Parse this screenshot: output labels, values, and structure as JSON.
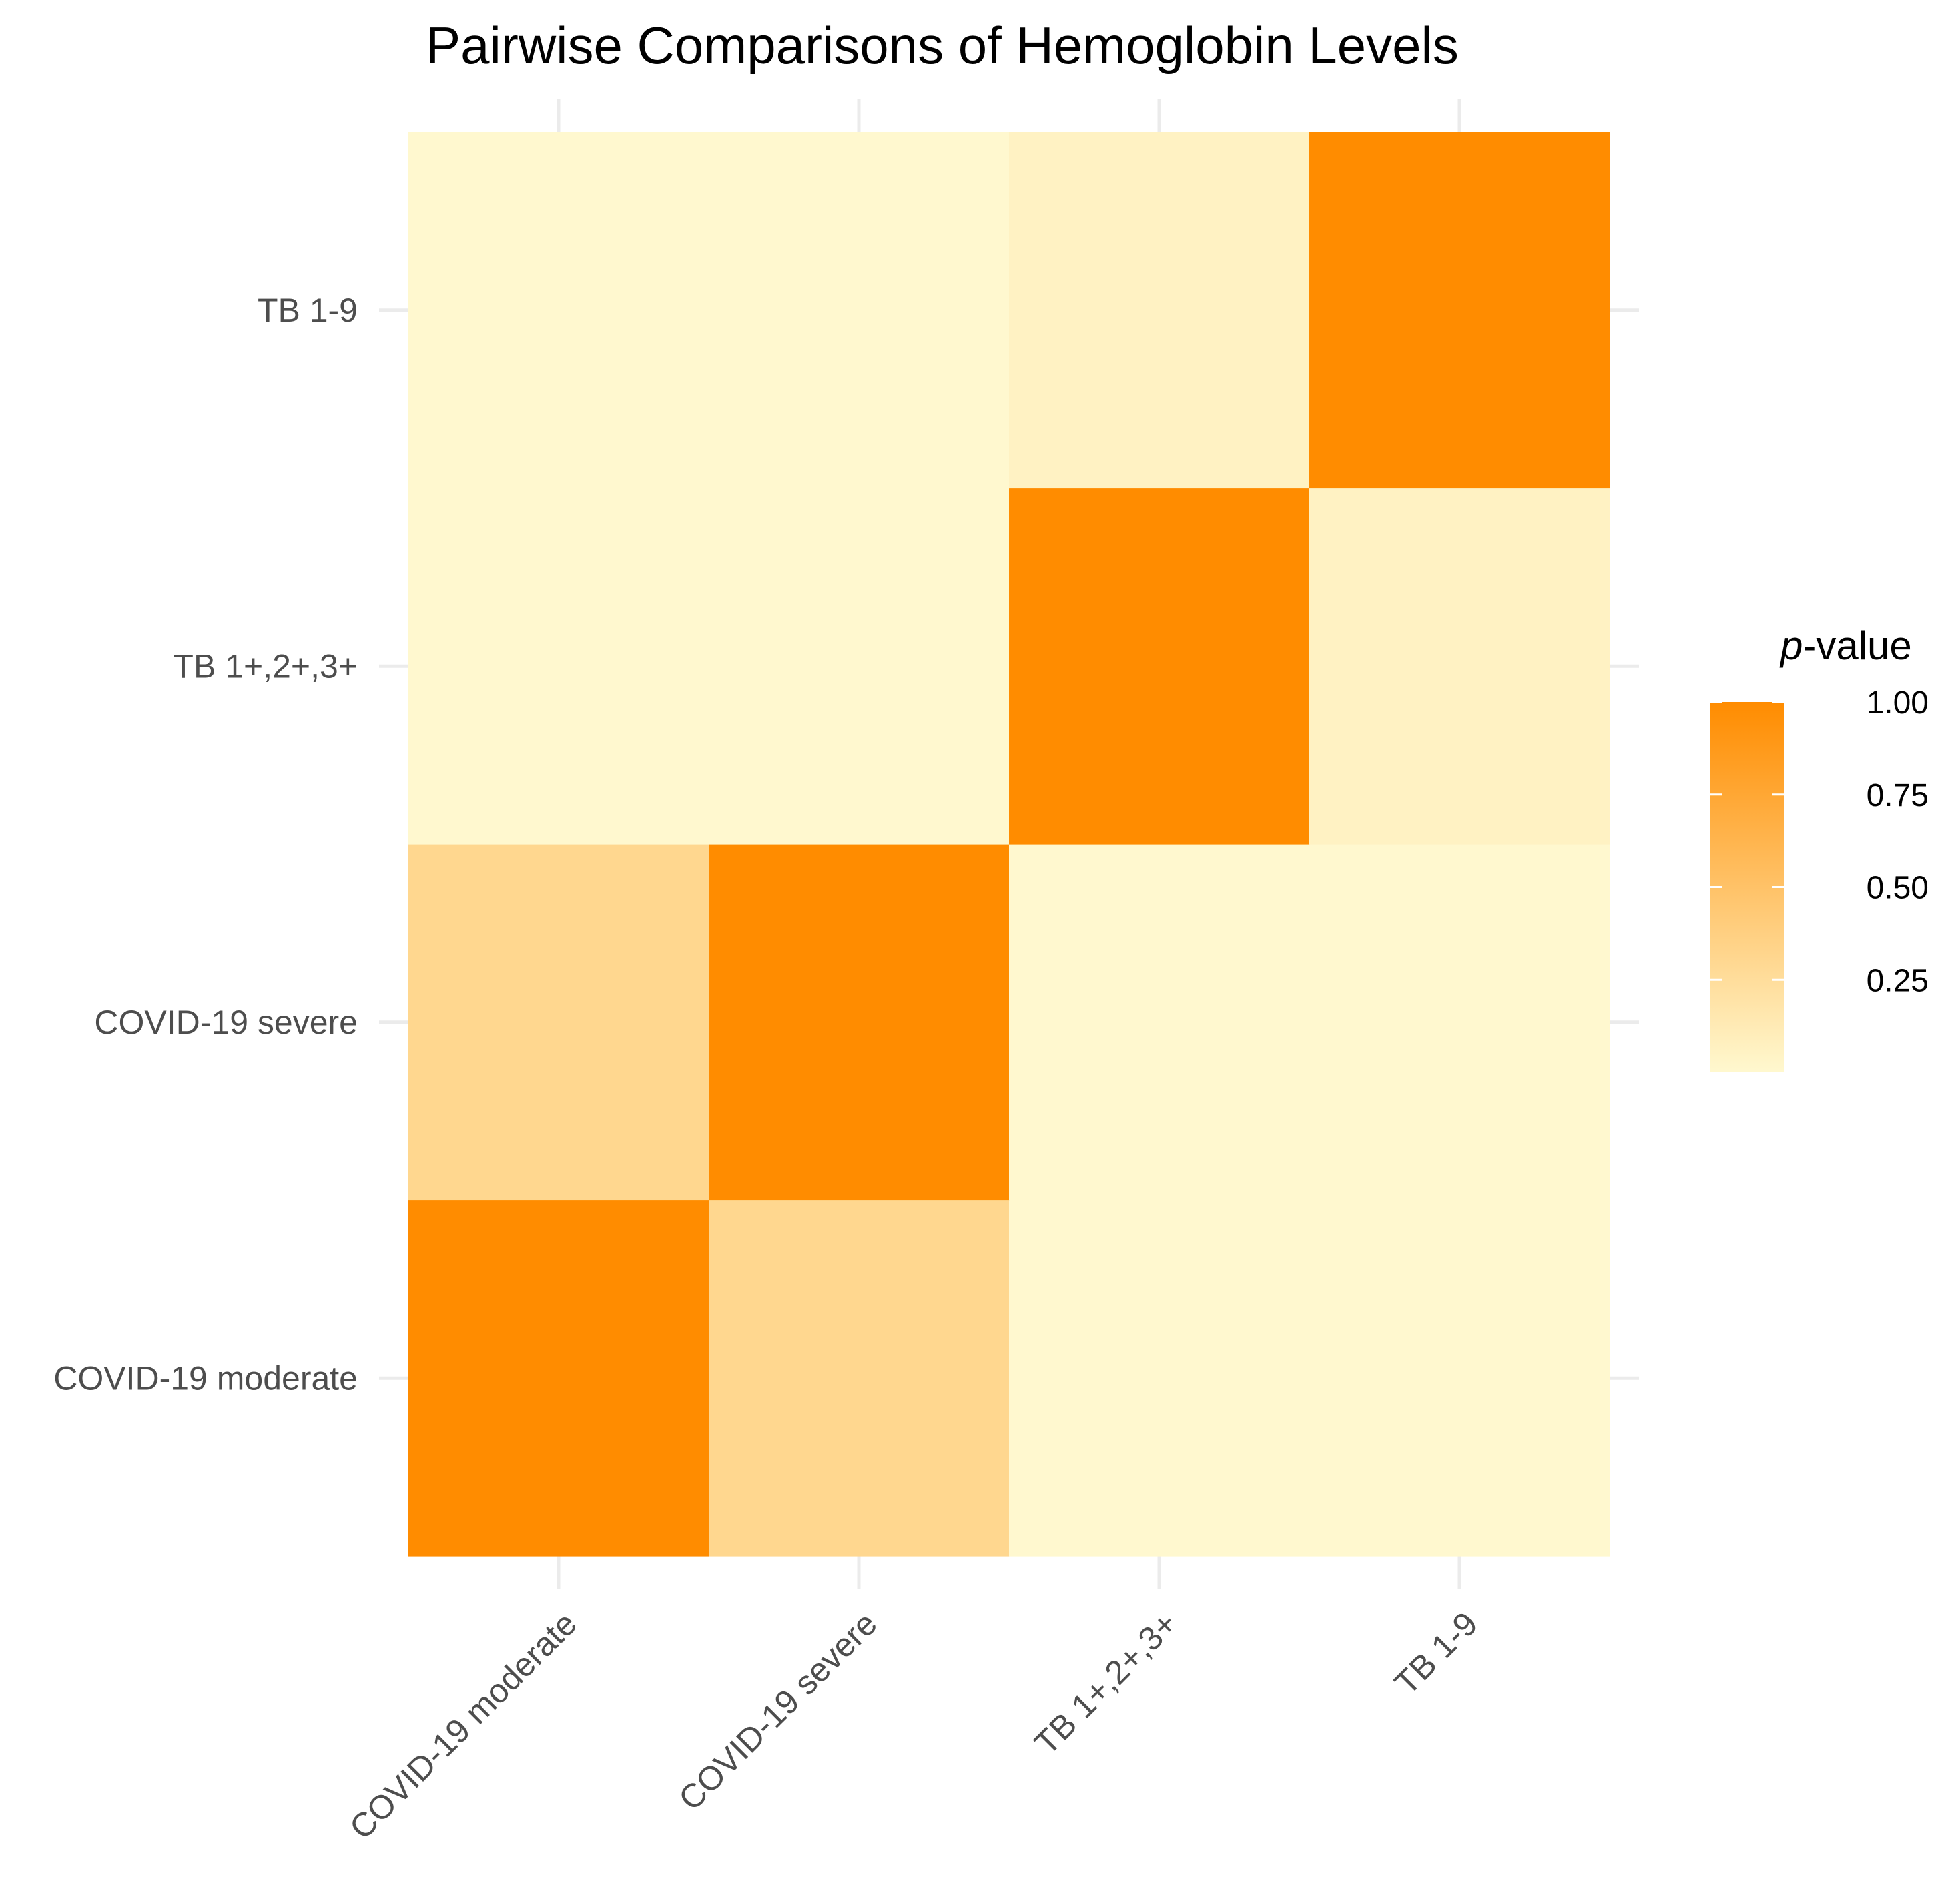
{
  "chart_data": {
    "type": "heatmap",
    "title": "Pairwise Comparisons of Hemoglobin Levels",
    "xlabel": "",
    "ylabel": "",
    "x_categories": [
      "COVID-19 moderate",
      "COVID-19 severe",
      "TB 1+,2+,3+",
      "TB 1-9"
    ],
    "y_categories": [
      "COVID-19 moderate",
      "COVID-19 severe",
      "TB 1+,2+,3+",
      "TB 1-9"
    ],
    "values": [
      [
        1.0,
        0.31,
        0.0,
        0.0
      ],
      [
        0.31,
        1.0,
        0.0,
        0.0
      ],
      [
        0.0,
        0.0,
        1.0,
        0.06
      ],
      [
        0.0,
        0.0,
        0.06,
        1.0
      ]
    ],
    "value_rows_are": "y_categories (bottom to top)",
    "color_scale": {
      "low": "#FFF8CF",
      "high": "#FF8C00",
      "range": [
        0,
        1
      ]
    },
    "legend": {
      "title_italic": "p",
      "title_rest": "-value",
      "ticks": [
        1.0,
        0.75,
        0.5,
        0.25
      ],
      "tick_labels": [
        "1.00",
        "0.75",
        "0.50",
        "0.25"
      ],
      "placement": "right"
    },
    "grid": true
  }
}
